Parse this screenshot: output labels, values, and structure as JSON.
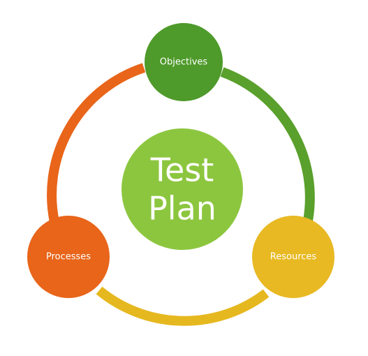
{
  "diagram": {
    "center": {
      "line1": "Test",
      "line2": "Plan",
      "color": "#8cc63f"
    },
    "nodes": [
      {
        "id": "objectives",
        "label": "Objectives",
        "color": "#4e9a2a"
      },
      {
        "id": "resources",
        "label": "Resources",
        "color": "#e8b923"
      },
      {
        "id": "processes",
        "label": "Processes",
        "color": "#e8651a"
      }
    ],
    "arcs": [
      {
        "from": "objectives",
        "to": "resources",
        "color": "#5aa02c"
      },
      {
        "from": "resources",
        "to": "processes",
        "color": "#e6b820"
      },
      {
        "from": "processes",
        "to": "objectives",
        "color": "#e8651a"
      }
    ]
  }
}
